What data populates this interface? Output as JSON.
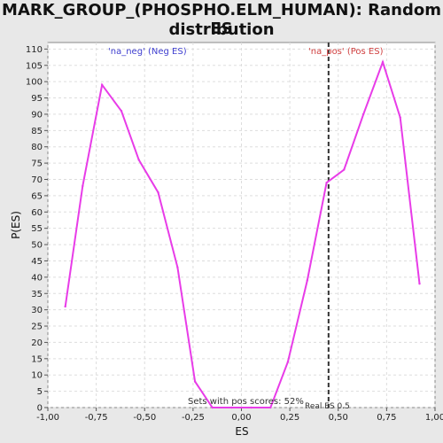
{
  "chart_data": {
    "type": "line",
    "title_line1": "MARK_GROUP_(PHOSPHO.ELM_HUMAN): Random ES",
    "title_line2": "distribution",
    "xlabel": "ES",
    "ylabel": "P(ES)",
    "xlim": [
      -1.0,
      1.0
    ],
    "ylim": [
      0,
      112
    ],
    "x_ticks": [
      -1.0,
      -0.75,
      -0.5,
      -0.25,
      0.0,
      0.25,
      0.5,
      0.75,
      1.0
    ],
    "x_tick_labels": [
      "-1,00",
      "-0,75",
      "-0,50",
      "-0,25",
      "0,00",
      "0,25",
      "0,50",
      "0,75",
      "1,00"
    ],
    "y_ticks": [
      0,
      5,
      10,
      15,
      20,
      25,
      30,
      35,
      40,
      45,
      50,
      55,
      60,
      65,
      70,
      75,
      80,
      85,
      90,
      95,
      100,
      105,
      110
    ],
    "grid": true,
    "series": [
      {
        "color": "#e83ce8",
        "x": [
          -0.91,
          -0.82,
          -0.72,
          -0.62,
          -0.53,
          -0.43,
          -0.33,
          -0.24,
          -0.15,
          -0.05,
          0.05,
          0.15,
          0.24,
          0.34,
          0.44,
          0.53,
          0.63,
          0.73,
          0.82,
          0.92
        ],
        "y": [
          31,
          68,
          99,
          91,
          76,
          66,
          43,
          8,
          0,
          0,
          0,
          0,
          14,
          39,
          69,
          73,
          90,
          106,
          89,
          38
        ]
      }
    ],
    "real_es": 0.45,
    "annotations": {
      "neg_label": "'na_neg' (Neg ES)",
      "pos_label": "'na_pos' (Pos ES)",
      "pos_scores": "Sets with pos scores: 52%",
      "real_es_label": "Real ES 0.5"
    },
    "colors": {
      "line": "#e83ce8",
      "neg_label": "#4040d0",
      "pos_label": "#d04040",
      "real_es_line": "#333333",
      "grid": "#dddddd"
    }
  }
}
